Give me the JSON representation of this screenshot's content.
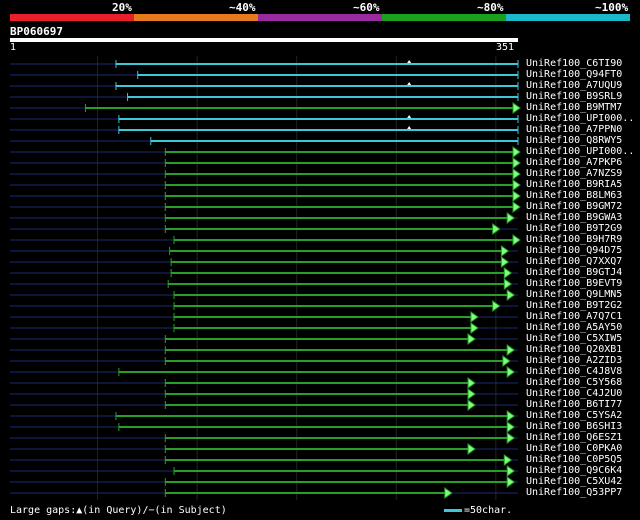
{
  "legend": {
    "labels": [
      "20%",
      "~40%",
      "~60%",
      "~80%",
      "~100%"
    ],
    "colors": [
      "#e8202a",
      "#e87a1e",
      "#9a2aa0",
      "#1aa01e",
      "#1ab8c8"
    ]
  },
  "query": {
    "name": "BP060697",
    "start_label": "1",
    "end_label": "351",
    "length": 351
  },
  "hits": [
    {
      "label": "UniRef100_C6TI90",
      "start": 74,
      "end": 351,
      "color": "#3cc8d8",
      "arrow": false,
      "gap_marker": true
    },
    {
      "label": "UniRef100_Q94FT0",
      "start": 89,
      "end": 351,
      "color": "#3cc8d8",
      "arrow": false,
      "gap_marker": false
    },
    {
      "label": "UniRef100_A7UQU9",
      "start": 74,
      "end": 351,
      "color": "#3cc8d8",
      "arrow": false,
      "gap_marker": true
    },
    {
      "label": "UniRef100_B9SRL9",
      "start": 82,
      "end": 351,
      "color": "#3cc8d8",
      "arrow": false,
      "gap_marker": false
    },
    {
      "label": "UniRef100_B9MTM7",
      "start": 53,
      "end": 351,
      "color": "#28a028",
      "arrow": true,
      "gap_marker": false
    },
    {
      "label": "UniRef100_UPI000..",
      "start": 76,
      "end": 351,
      "color": "#3cc8d8",
      "arrow": false,
      "gap_marker": true
    },
    {
      "label": "UniRef100_A7PPN0",
      "start": 76,
      "end": 351,
      "color": "#3cc8d8",
      "arrow": false,
      "gap_marker": true
    },
    {
      "label": "UniRef100_Q8RWY5",
      "start": 98,
      "end": 351,
      "color": "#3cc8d8",
      "arrow": false,
      "gap_marker": false
    },
    {
      "label": "UniRef100_UPI000..",
      "start": 108,
      "end": 351,
      "color": "#28a028",
      "arrow": true,
      "gap_marker": false
    },
    {
      "label": "UniRef100_A7PKP6",
      "start": 108,
      "end": 351,
      "color": "#28a028",
      "arrow": true,
      "gap_marker": false
    },
    {
      "label": "UniRef100_A7NZS9",
      "start": 108,
      "end": 351,
      "color": "#28a028",
      "arrow": true,
      "gap_marker": false
    },
    {
      "label": "UniRef100_B9RIA5",
      "start": 108,
      "end": 351,
      "color": "#28a028",
      "arrow": true,
      "gap_marker": false
    },
    {
      "label": "UniRef100_B8LM63",
      "start": 108,
      "end": 351,
      "color": "#28a028",
      "arrow": true,
      "gap_marker": false
    },
    {
      "label": "UniRef100_B9GM72",
      "start": 108,
      "end": 351,
      "color": "#28a028",
      "arrow": true,
      "gap_marker": false
    },
    {
      "label": "UniRef100_B9GWA3",
      "start": 108,
      "end": 347,
      "color": "#28a028",
      "arrow": true,
      "gap_marker": false
    },
    {
      "label": "UniRef100_B9T2G9",
      "start": 108,
      "end": 337,
      "color": "#28a028",
      "arrow": true,
      "gap_marker": false
    },
    {
      "label": "UniRef100_B9H7R9",
      "start": 114,
      "end": 351,
      "color": "#28a028",
      "arrow": true,
      "gap_marker": false
    },
    {
      "label": "UniRef100_Q94D75",
      "start": 111,
      "end": 343,
      "color": "#28a028",
      "arrow": true,
      "gap_marker": false
    },
    {
      "label": "UniRef100_Q7XXQ7",
      "start": 112,
      "end": 343,
      "color": "#28a028",
      "arrow": true,
      "gap_marker": false
    },
    {
      "label": "UniRef100_B9GTJ4",
      "start": 112,
      "end": 345,
      "color": "#28a028",
      "arrow": true,
      "gap_marker": false
    },
    {
      "label": "UniRef100_B9EVT9",
      "start": 110,
      "end": 345,
      "color": "#28a028",
      "arrow": true,
      "gap_marker": false
    },
    {
      "label": "UniRef100_Q9LMN5",
      "start": 114,
      "end": 347,
      "color": "#28a028",
      "arrow": true,
      "gap_marker": false
    },
    {
      "label": "UniRef100_B9T2G2",
      "start": 114,
      "end": 337,
      "color": "#28a028",
      "arrow": true,
      "gap_marker": false
    },
    {
      "label": "UniRef100_A7Q7C1",
      "start": 114,
      "end": 322,
      "color": "#28a028",
      "arrow": true,
      "gap_marker": false
    },
    {
      "label": "UniRef100_A5AY50",
      "start": 114,
      "end": 322,
      "color": "#28a028",
      "arrow": true,
      "gap_marker": false
    },
    {
      "label": "UniRef100_C5XIW5",
      "start": 108,
      "end": 320,
      "color": "#28a028",
      "arrow": true,
      "gap_marker": false
    },
    {
      "label": "UniRef100_Q20XB1",
      "start": 108,
      "end": 347,
      "color": "#28a028",
      "arrow": true,
      "gap_marker": false
    },
    {
      "label": "UniRef100_A2ZID3",
      "start": 108,
      "end": 344,
      "color": "#28a028",
      "arrow": true,
      "gap_marker": false
    },
    {
      "label": "UniRef100_C4J8V8",
      "start": 76,
      "end": 347,
      "color": "#28a028",
      "arrow": true,
      "gap_marker": false
    },
    {
      "label": "UniRef100_C5Y568",
      "start": 108,
      "end": 320,
      "color": "#28a028",
      "arrow": true,
      "gap_marker": false
    },
    {
      "label": "UniRef100_C4J2U0",
      "start": 108,
      "end": 320,
      "color": "#28a028",
      "arrow": true,
      "gap_marker": false
    },
    {
      "label": "UniRef100_B6TI77",
      "start": 108,
      "end": 320,
      "color": "#28a028",
      "arrow": true,
      "gap_marker": false
    },
    {
      "label": "UniRef100_C5YSA2",
      "start": 74,
      "end": 347,
      "color": "#28a028",
      "arrow": true,
      "gap_marker": false
    },
    {
      "label": "UniRef100_B6SHI3",
      "start": 76,
      "end": 347,
      "color": "#28a028",
      "arrow": true,
      "gap_marker": false
    },
    {
      "label": "UniRef100_Q6ESZ1",
      "start": 108,
      "end": 347,
      "color": "#28a028",
      "arrow": true,
      "gap_marker": false
    },
    {
      "label": "UniRef100_C0PKA0",
      "start": 108,
      "end": 320,
      "color": "#28a028",
      "arrow": true,
      "gap_marker": false
    },
    {
      "label": "UniRef100_C0P5Q5",
      "start": 108,
      "end": 345,
      "color": "#28a028",
      "arrow": true,
      "gap_marker": false
    },
    {
      "label": "UniRef100_Q9C6K4",
      "start": 114,
      "end": 347,
      "color": "#28a028",
      "arrow": true,
      "gap_marker": false
    },
    {
      "label": "UniRef100_C5XU42",
      "start": 108,
      "end": 347,
      "color": "#28a028",
      "arrow": true,
      "gap_marker": false
    },
    {
      "label": "UniRef100_Q53PP7",
      "start": 108,
      "end": 304,
      "color": "#28a028",
      "arrow": true,
      "gap_marker": false
    }
  ],
  "footer": {
    "text": "Large gaps:▲(in Query)/−(in Subject)",
    "scale_text": "=50char."
  }
}
